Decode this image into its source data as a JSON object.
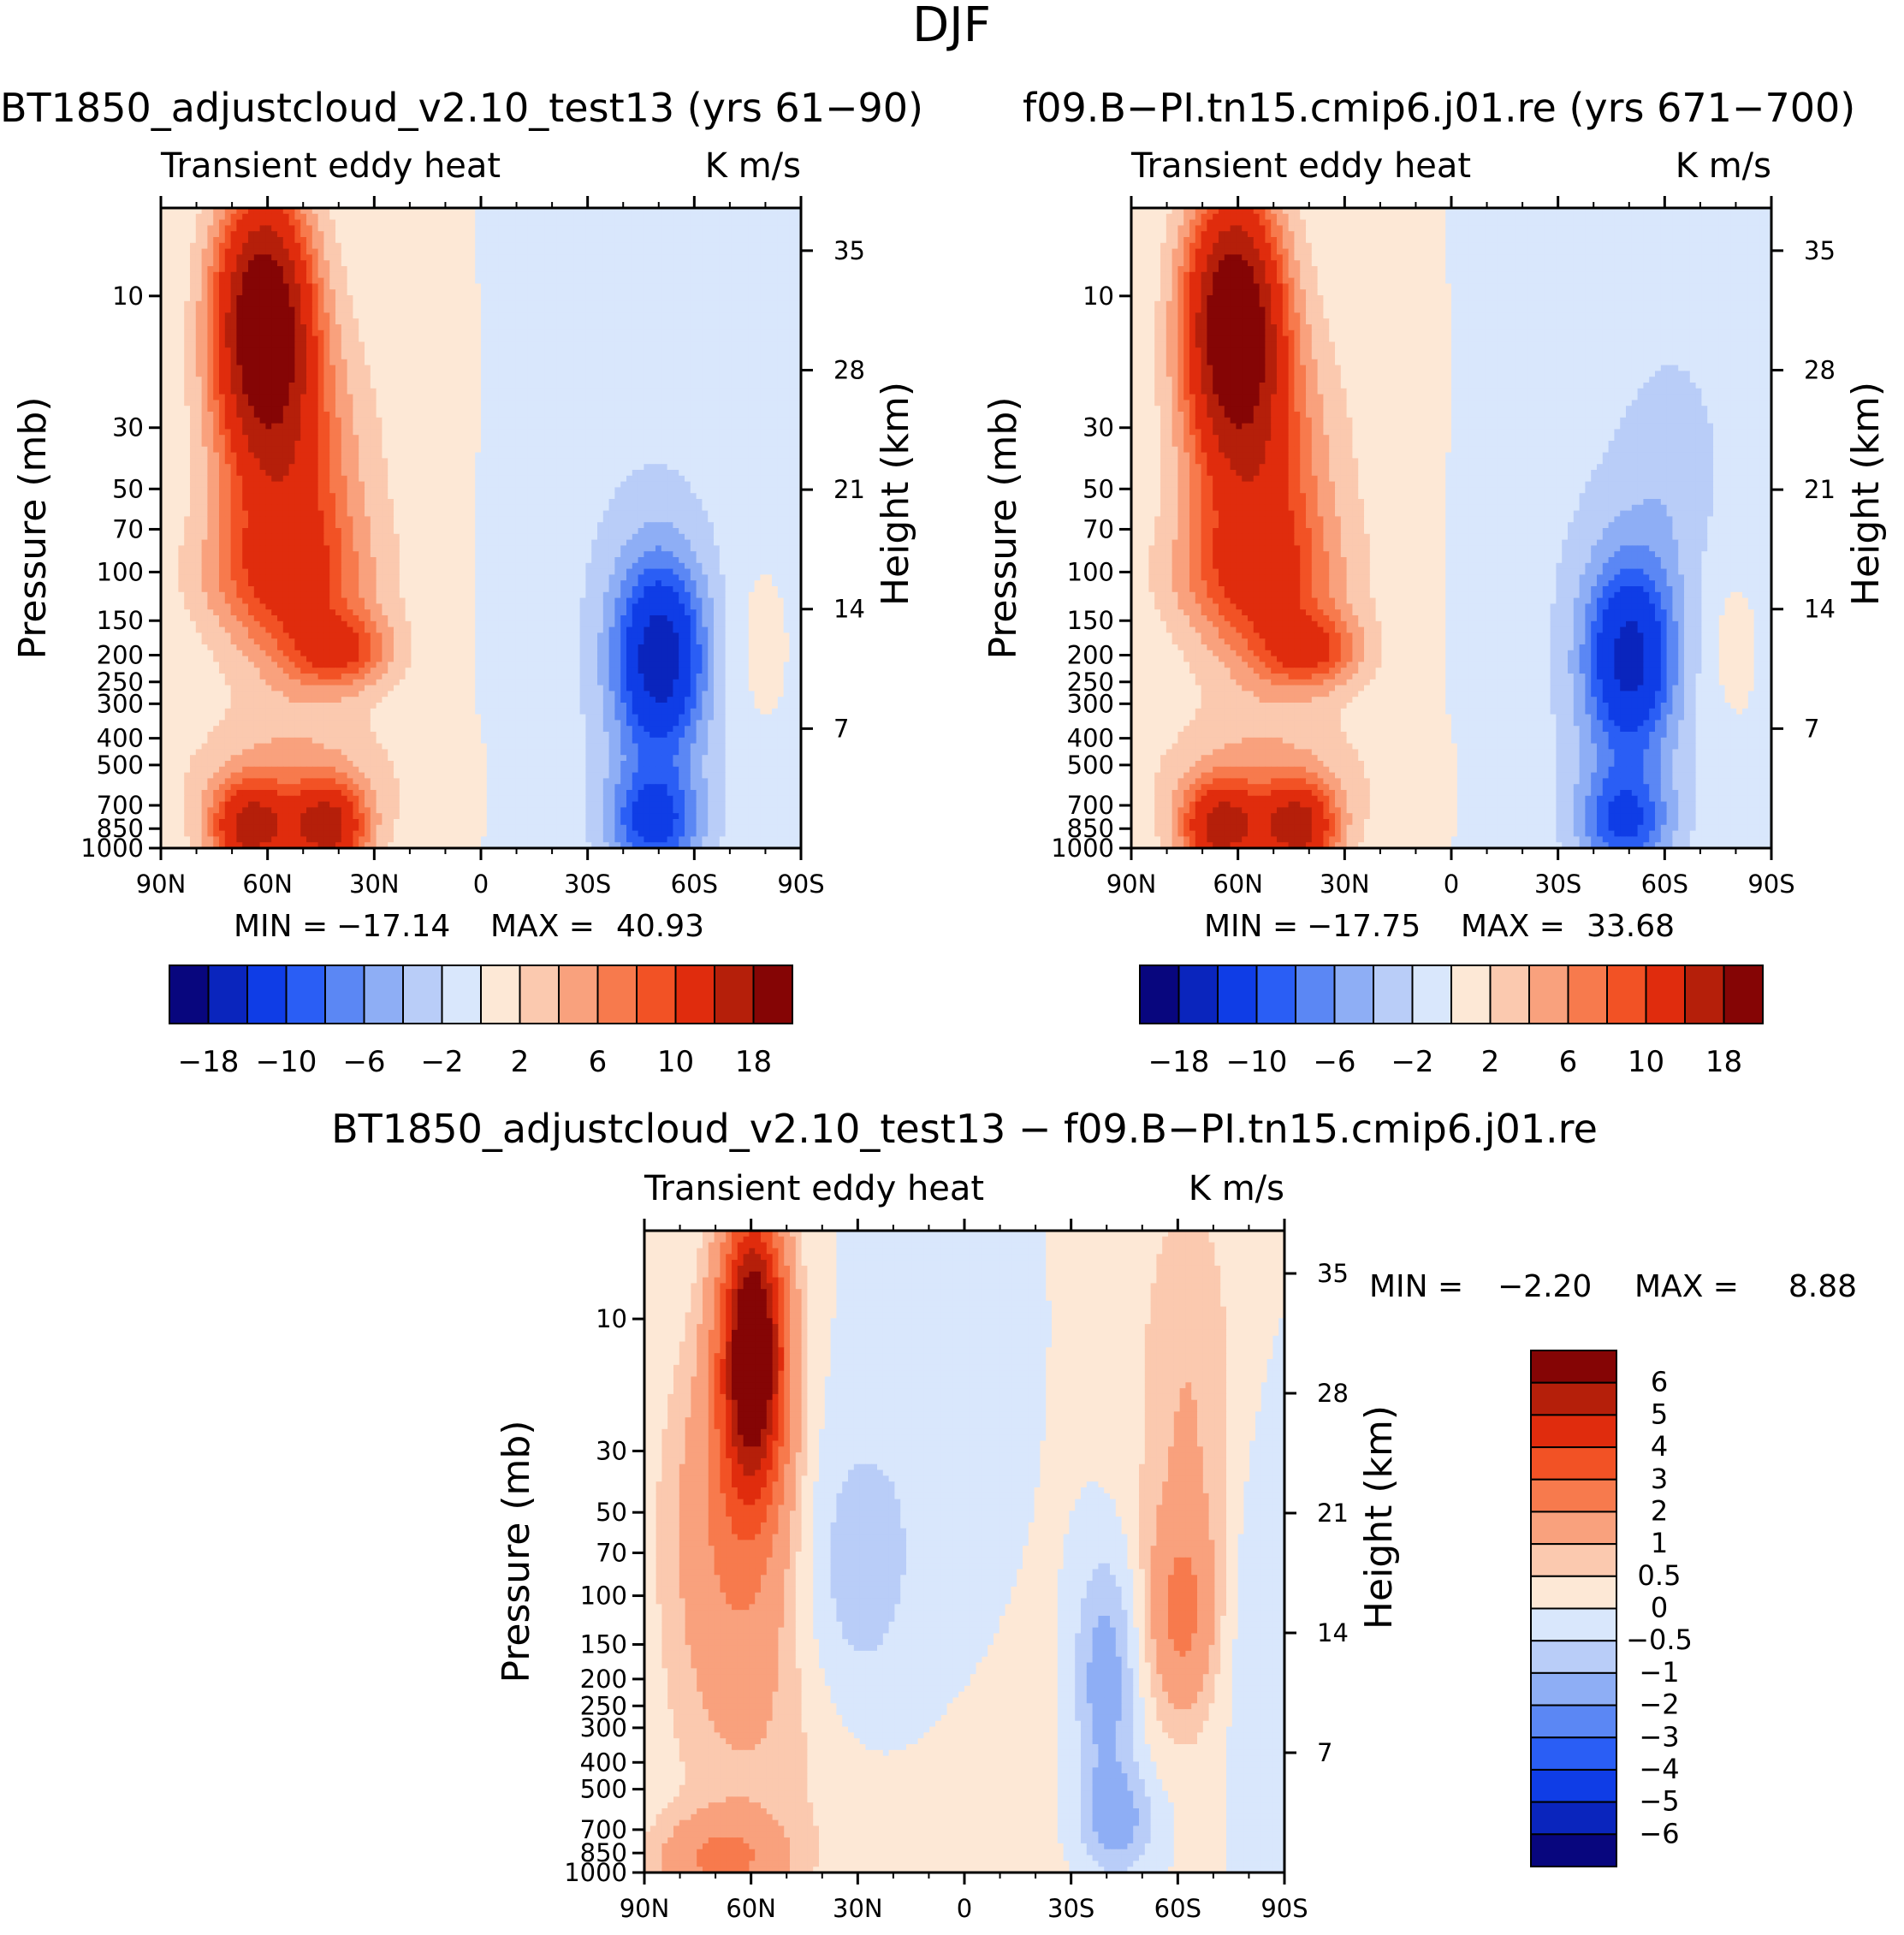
{
  "figure_title": "DJF",
  "chart_data": [
    {
      "type": "heatmap",
      "id": "p1",
      "title": "BT1850_adjustcloud_v2.10_test13 (yrs 61−90)",
      "left_label": "Transient eddy heat",
      "right_label": "K m/s",
      "ylabel_left": "Pressure (mb)",
      "ylabel_right": "Height (km)",
      "xticks": [
        "90N",
        "60N",
        "30N",
        "0",
        "30S",
        "60S",
        "90S"
      ],
      "yticks": [
        10,
        30,
        50,
        70,
        100,
        150,
        200,
        250,
        300,
        400,
        500,
        700,
        850,
        1000
      ],
      "height_ticks": [
        35,
        28,
        21,
        14,
        7
      ],
      "min_label": "MIN =",
      "min_value": "−17.14",
      "max_label": "MAX =",
      "max_value": "40.93",
      "colorbar_labels": [
        "−18",
        "−10",
        "−6",
        "−2",
        "2",
        "6",
        "10",
        "18"
      ]
    },
    {
      "type": "heatmap",
      "id": "p2",
      "title": "f09.B−PI.tn15.cmip6.j01.re (yrs 671−700)",
      "left_label": "Transient eddy heat",
      "right_label": "K m/s",
      "ylabel_left": "Pressure (mb)",
      "ylabel_right": "Height (km)",
      "xticks": [
        "90N",
        "60N",
        "30N",
        "0",
        "30S",
        "60S",
        "90S"
      ],
      "yticks": [
        10,
        30,
        50,
        70,
        100,
        150,
        200,
        250,
        300,
        400,
        500,
        700,
        850,
        1000
      ],
      "height_ticks": [
        35,
        28,
        21,
        14,
        7
      ],
      "min_label": "MIN =",
      "min_value": "−17.75",
      "max_label": "MAX =",
      "max_value": "33.68",
      "colorbar_labels": [
        "−18",
        "−10",
        "−6",
        "−2",
        "2",
        "6",
        "10",
        "18"
      ]
    },
    {
      "type": "heatmap",
      "id": "p3",
      "title": "BT1850_adjustcloud_v2.10_test13 − f09.B−PI.tn15.cmip6.j01.re",
      "left_label": "Transient eddy heat",
      "right_label": "K m/s",
      "ylabel_left": "Pressure (mb)",
      "ylabel_right": "Height (km)",
      "xticks": [
        "90N",
        "60N",
        "30N",
        "0",
        "30S",
        "60S",
        "90S"
      ],
      "yticks": [
        10,
        30,
        50,
        70,
        100,
        150,
        200,
        250,
        300,
        400,
        500,
        700,
        850,
        1000
      ],
      "height_ticks": [
        35,
        28,
        21,
        14,
        7
      ],
      "min_label": "MIN =",
      "min_value": "−2.20",
      "max_label": "MAX =",
      "max_value": "8.88",
      "colorbar_labels": [
        "6",
        "5",
        "4",
        "3",
        "2",
        "1",
        "0.5",
        "0",
        "−0.5",
        "−1",
        "−2",
        "−3",
        "−4",
        "−5",
        "−6"
      ]
    }
  ],
  "colors": {
    "diverging": [
      "#08067e",
      "#0a25bd",
      "#0f3de6",
      "#2a5ef5",
      "#5b87f4",
      "#8eaef5",
      "#b9cdf8",
      "#d9e7fc",
      "#fde8d6",
      "#fbc9af",
      "#f9a17d",
      "#f77a4d",
      "#f25225",
      "#e02c0d",
      "#b51f0a",
      "#850505"
    ]
  }
}
